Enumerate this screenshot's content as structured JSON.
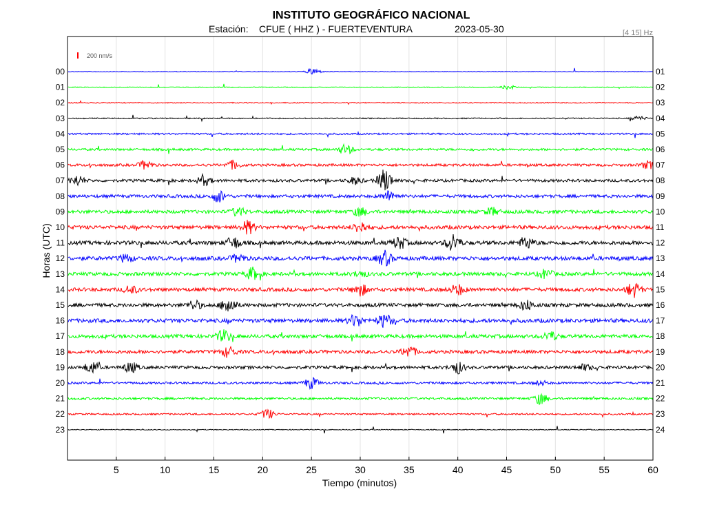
{
  "header": {
    "title": "INSTITUTO GEOGRÁFICO NACIONAL",
    "station_prefix": "Estación:",
    "station": "CFUE ( HHZ ) - FUERTEVENTURA",
    "date": "2023-05-30",
    "filter": "[4 15] Hz",
    "scale": "200 nm/s"
  },
  "chart_data": {
    "type": "line",
    "xlabel": "Tiempo (minutos)",
    "ylabel": "Horas (UTC)",
    "xlim": [
      0,
      60
    ],
    "x_ticks": [
      5,
      10,
      15,
      20,
      25,
      30,
      35,
      40,
      45,
      50,
      55,
      60
    ],
    "grid": true,
    "trace_colors": [
      "#0000ff",
      "#00ff00",
      "#ff0000",
      "#000000"
    ],
    "traces": [
      {
        "left": "00",
        "right": "01",
        "events": [
          [
            25.2,
            0.5
          ]
        ]
      },
      {
        "left": "01",
        "right": "02",
        "events": [
          [
            45.2,
            0.3
          ]
        ]
      },
      {
        "left": "02",
        "right": "03",
        "events": []
      },
      {
        "left": "03",
        "right": "04",
        "events": [
          [
            58.5,
            0.3
          ]
        ]
      },
      {
        "left": "04",
        "right": "05",
        "events": []
      },
      {
        "left": "05",
        "right": "06",
        "events": [
          [
            28.5,
            0.7
          ]
        ]
      },
      {
        "left": "06",
        "right": "07",
        "events": [
          [
            8.0,
            0.6
          ],
          [
            17.0,
            0.6
          ],
          [
            59.5,
            0.5
          ]
        ]
      },
      {
        "left": "07",
        "right": "08",
        "events": [
          [
            1.0,
            0.7
          ],
          [
            14.0,
            0.6
          ],
          [
            29.5,
            0.5
          ],
          [
            32.5,
            1.6
          ]
        ]
      },
      {
        "left": "08",
        "right": "09",
        "events": [
          [
            15.5,
            0.8
          ],
          [
            33.0,
            0.7
          ]
        ]
      },
      {
        "left": "09",
        "right": "10",
        "events": [
          [
            17.5,
            0.6
          ],
          [
            30.0,
            0.6
          ],
          [
            43.5,
            0.5
          ]
        ]
      },
      {
        "left": "10",
        "right": "11",
        "events": [
          [
            18.5,
            0.9
          ],
          [
            30.0,
            0.8
          ]
        ]
      },
      {
        "left": "11",
        "right": "12",
        "events": [
          [
            17.0,
            0.8
          ],
          [
            34.0,
            0.8
          ],
          [
            39.5,
            1.2
          ],
          [
            47.0,
            0.8
          ]
        ]
      },
      {
        "left": "12",
        "right": "13",
        "events": [
          [
            6.0,
            0.5
          ],
          [
            17.5,
            0.5
          ],
          [
            32.5,
            1.0
          ]
        ]
      },
      {
        "left": "13",
        "right": "14",
        "events": [
          [
            19.0,
            0.8
          ],
          [
            30.0,
            0.4
          ],
          [
            49.0,
            0.6
          ]
        ]
      },
      {
        "left": "14",
        "right": "15",
        "events": [
          [
            6.5,
            0.5
          ],
          [
            30.0,
            0.8
          ],
          [
            40.0,
            0.7
          ],
          [
            58.0,
            1.0
          ]
        ]
      },
      {
        "left": "15",
        "right": "16",
        "events": [
          [
            13.0,
            0.6
          ],
          [
            16.5,
            1.2
          ],
          [
            47.0,
            0.7
          ]
        ]
      },
      {
        "left": "16",
        "right": "17",
        "events": [
          [
            29.5,
            0.8
          ],
          [
            32.5,
            0.9
          ]
        ]
      },
      {
        "left": "17",
        "right": "18",
        "events": [
          [
            16.0,
            0.8
          ],
          [
            49.5,
            0.6
          ]
        ]
      },
      {
        "left": "18",
        "right": "19",
        "events": [
          [
            16.5,
            0.7
          ],
          [
            35.0,
            0.8
          ]
        ]
      },
      {
        "left": "19",
        "right": "20",
        "events": [
          [
            2.5,
            0.8
          ],
          [
            6.5,
            0.7
          ],
          [
            40.0,
            0.8
          ],
          [
            53.0,
            0.4
          ]
        ]
      },
      {
        "left": "20",
        "right": "21",
        "events": [
          [
            25.0,
            0.8
          ],
          [
            48.5,
            0.3
          ]
        ]
      },
      {
        "left": "21",
        "right": "22",
        "events": [
          [
            48.5,
            0.8
          ]
        ]
      },
      {
        "left": "22",
        "right": "23",
        "events": [
          [
            20.5,
            0.7
          ]
        ]
      },
      {
        "left": "23",
        "right": "24",
        "events": []
      }
    ]
  }
}
